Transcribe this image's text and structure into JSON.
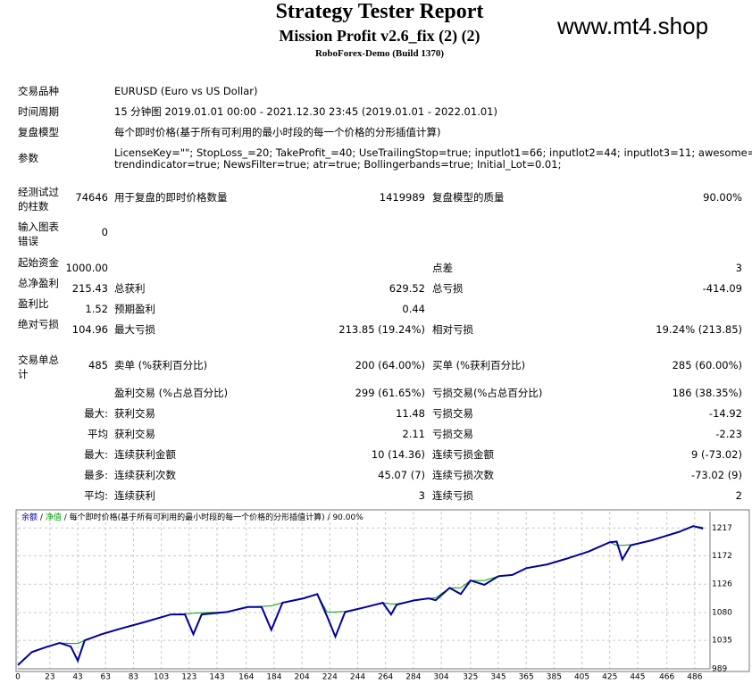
{
  "header": {
    "title": "Strategy Tester Report",
    "subtitle": "Mission Profit v2.6_fix (2) (2)",
    "server": "RoboForex-Demo (Build 1370)",
    "watermark": "www.mt4.shop"
  },
  "info": [
    {
      "label": "交易品种",
      "value": "EURUSD (Euro vs US Dollar)"
    },
    {
      "label": "时间周期",
      "value": "15 分钟图 2019.01.01 00:00 - 2021.12.30 23:45 (2019.01.01 - 2022.01.01)"
    },
    {
      "label": "复盘模型",
      "value": "每个即时价格(基于所有可利用的最小时段的每一个价格的分形插值计算)"
    },
    {
      "label": "参数",
      "lines": [
        "LicenseKey=\"\"; StopLoss_=20; TakeProfit_=40; UseTrailingStop=true; inputlot1=66; inputlot2=44; inputlot3=11; awesome=true;",
        "trendindicator=true; NewsFilter=true; atr=true; Bollingerbands=true; Initial_Lot=0.01;"
      ]
    }
  ],
  "stats": [
    {
      "c1": {
        "label": "经测试过的柱数",
        "value": "74646"
      },
      "c2": {
        "label": "用于复盘的即时价格数量",
        "value": "1419989"
      },
      "c3": {
        "label": "复盘模型的质量",
        "value": "90.00%"
      }
    },
    {
      "c1": {
        "label": "输入图表错误",
        "value": "0"
      }
    },
    {
      "c1": {
        "label": "起始资金",
        "value": "1000.00"
      },
      "c3": {
        "label": "点差",
        "value": "3"
      }
    },
    {
      "c1": {
        "label": "总净盈利",
        "value": "215.43"
      },
      "c2": {
        "label": "总获利",
        "value": "629.52"
      },
      "c3": {
        "label": "总亏损",
        "value": "-414.09"
      }
    },
    {
      "c1": {
        "label": "盈利比",
        "value": "1.52"
      },
      "c2": {
        "label": "预期盈利",
        "value": "0.44"
      }
    },
    {
      "c1": {
        "label": "绝对亏损",
        "value": "104.96"
      },
      "c2": {
        "label": "最大亏损",
        "value": "213.85 (19.24%)"
      },
      "c3": {
        "label": "相对亏损",
        "value": "19.24% (213.85)"
      }
    },
    {
      "c1": {
        "label": "交易单总计",
        "value": "485"
      },
      "c2": {
        "label": "卖单 (%获利百分比)",
        "value": "200 (64.00%)"
      },
      "c3": {
        "label": "买单 (%获利百分比)",
        "value": "285 (60.00%)"
      }
    },
    {
      "c2": {
        "label": "盈利交易 (%占总百分比)",
        "value": "299 (61.65%)"
      },
      "c3": {
        "label": "亏损交易(%占总百分比)",
        "value": "186 (38.35%)"
      }
    },
    {
      "c1": {
        "value": "最大:"
      },
      "c2": {
        "label": "获利交易",
        "value": "11.48"
      },
      "c3": {
        "label": "亏损交易",
        "value": "-14.92"
      }
    },
    {
      "c1": {
        "value": "平均"
      },
      "c2": {
        "label": "获利交易",
        "value": "2.11"
      },
      "c3": {
        "label": "亏损交易",
        "value": "-2.23"
      }
    },
    {
      "c1": {
        "value": "最大:"
      },
      "c2": {
        "label": "连续获利金额",
        "value": "10 (14.36)"
      },
      "c3": {
        "label": "连续亏损金额",
        "value": "9 (-73.02)"
      }
    },
    {
      "c1": {
        "value": "最多:"
      },
      "c2": {
        "label": "连续获利次数",
        "value": "45.07 (7)"
      },
      "c3": {
        "label": "连续亏损次数",
        "value": "-73.02 (9)"
      }
    },
    {
      "c1": {
        "value": "平均:"
      },
      "c2": {
        "label": "连续获利",
        "value": "3"
      },
      "c3": {
        "label": "连续亏损",
        "value": "2"
      }
    }
  ],
  "chart_data": {
    "type": "line",
    "legend_separator": "/",
    "model_note": "每个即时价格(基于所有可利用的最小时段的每一个价格的分形插值计算)",
    "quality": "90.00%",
    "x": [
      0,
      10,
      20,
      30,
      38,
      43,
      48,
      60,
      75,
      90,
      110,
      120,
      126,
      132,
      150,
      165,
      175,
      182,
      190,
      205,
      215,
      222,
      228,
      235,
      250,
      262,
      268,
      272,
      285,
      295,
      300,
      310,
      318,
      325,
      335,
      345,
      355,
      365,
      380,
      395,
      410,
      425,
      430,
      434,
      440,
      455,
      465,
      475,
      485,
      492
    ],
    "series": [
      {
        "name": "余额",
        "color": "#0000a0",
        "values": [
          995,
          1016,
          1024,
          1031,
          1025,
          1002,
          1035,
          1045,
          1055,
          1064,
          1077,
          1077,
          1045,
          1077,
          1081,
          1089,
          1089,
          1052,
          1096,
          1103,
          1110,
          1074,
          1041,
          1081,
          1089,
          1096,
          1077,
          1093,
          1100,
          1103,
          1100,
          1120,
          1110,
          1132,
          1125,
          1139,
          1141,
          1152,
          1158,
          1168,
          1179,
          1194,
          1195,
          1166,
          1189,
          1197,
          1204,
          1211,
          1220,
          1216
        ]
      },
      {
        "name": "净值",
        "color": "#00a000",
        "values": [
          995,
          1016,
          1024,
          1031,
          1030,
          1030,
          1035,
          1045,
          1055,
          1064,
          1077,
          1078,
          1079,
          1080,
          1081,
          1089,
          1090,
          1091,
          1096,
          1103,
          1110,
          1081,
          1081,
          1082,
          1089,
          1096,
          1094,
          1094,
          1100,
          1103,
          1104,
          1120,
          1120,
          1132,
          1132,
          1139,
          1141,
          1152,
          1158,
          1168,
          1179,
          1194,
          1189,
          1189,
          1190,
          1197,
          1204,
          1211,
          1220,
          1218
        ]
      }
    ],
    "xlim": [
      0,
      497
    ],
    "ylim": [
      989,
      1229
    ],
    "xticks": [
      0,
      23,
      43,
      63,
      83,
      103,
      123,
      143,
      164,
      184,
      204,
      224,
      244,
      264,
      284,
      304,
      325,
      345,
      365,
      385,
      405,
      425,
      445,
      466,
      486
    ],
    "yticks": [
      989,
      1035,
      1080,
      1126,
      1172,
      1217
    ],
    "grid": true
  }
}
